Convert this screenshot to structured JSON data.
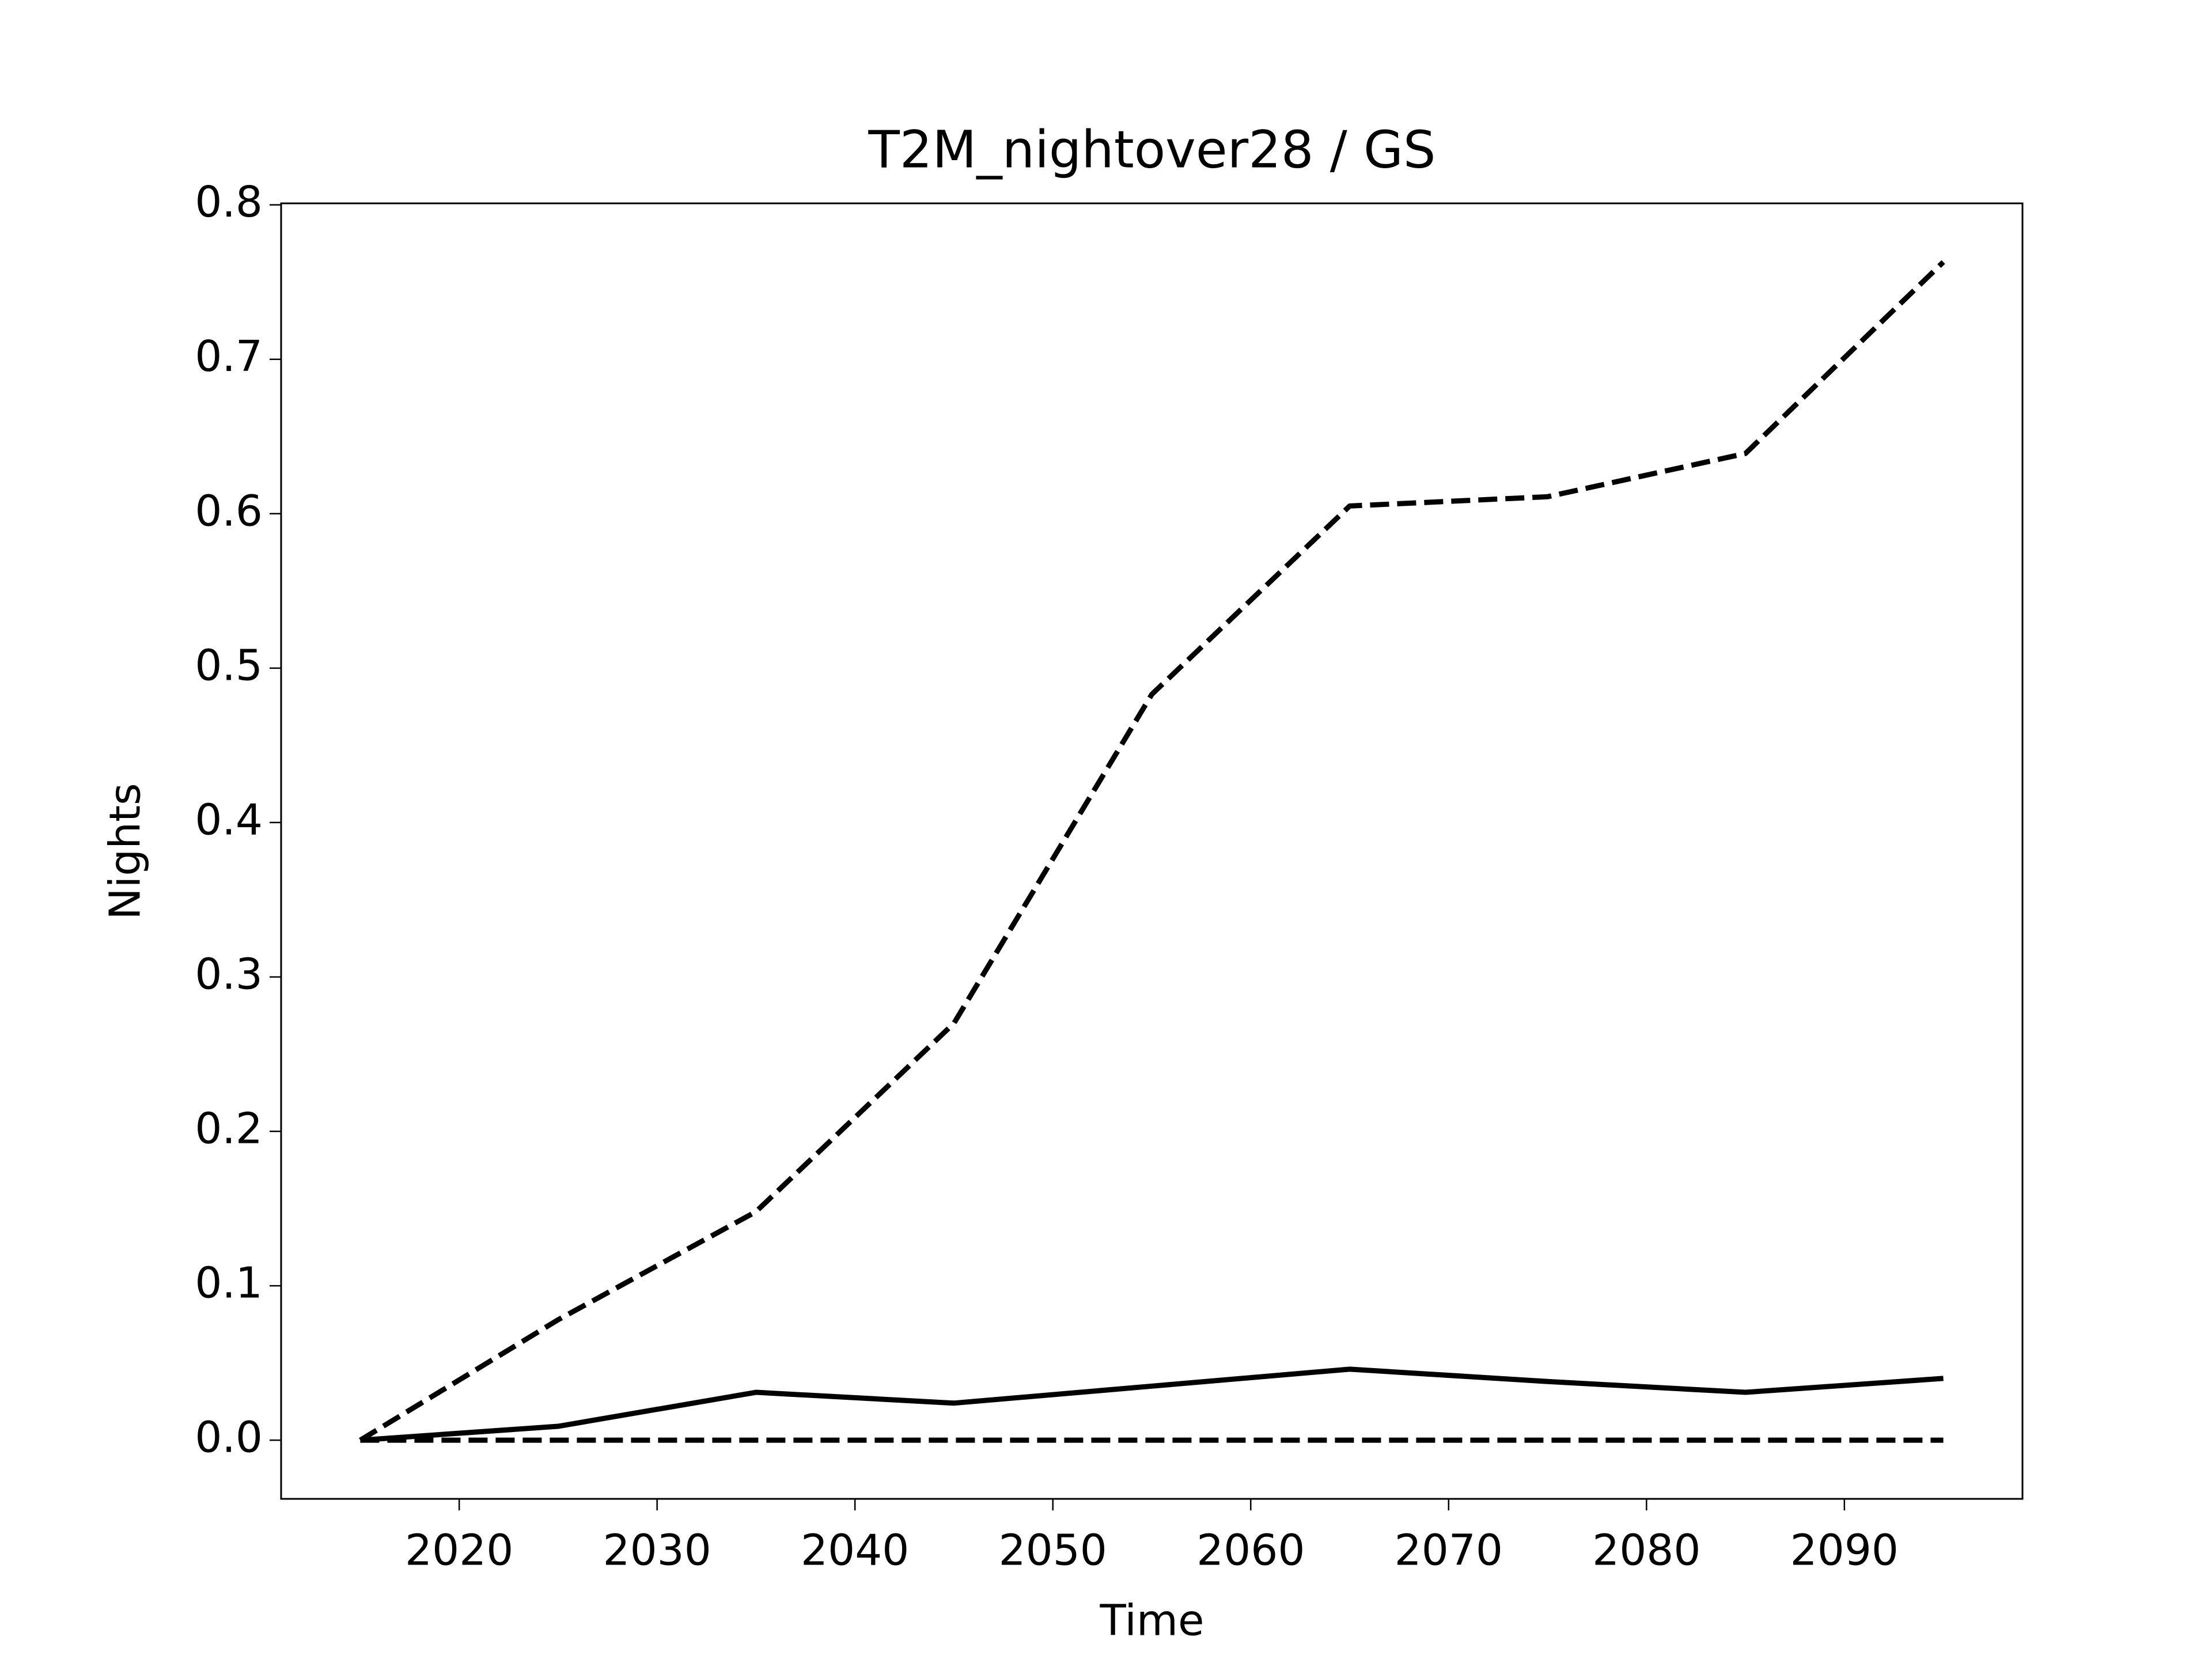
{
  "chart_data": {
    "type": "line",
    "title": "T2M_nightover28 / GS",
    "x_label": "Time",
    "y_label": "Nights",
    "x": [
      2015,
      2025,
      2035,
      2045,
      2055,
      2065,
      2075,
      2085,
      2095
    ],
    "series": [
      {
        "color": "#000000",
        "style": "dashed",
        "values": [
          0,
          0.078,
          0.148,
          0.27,
          0.483,
          0.605,
          0.611,
          0.639,
          0.763
        ]
      },
      {
        "color": "#000000",
        "style": "solid",
        "values": [
          0,
          0.009,
          0.031,
          0.024,
          0.035,
          0.046,
          0.038,
          0.031,
          0.04
        ]
      },
      {
        "color": "#000000",
        "style": "dashed",
        "values": [
          0,
          0,
          0,
          0,
          0,
          0,
          0,
          0,
          0
        ]
      }
    ],
    "xlim": [
      2011,
      2099
    ],
    "xticks": [
      2020,
      2030,
      2040,
      2050,
      2060,
      2070,
      2080,
      2090
    ],
    "ylim": [
      -0.038,
      0.801
    ],
    "yticks": [
      {
        "value": 0,
        "label": "0.0"
      },
      0.1,
      0.2,
      0.3,
      0.4,
      0.5,
      0.6,
      0.7,
      0.8
    ],
    "grid": false
  }
}
